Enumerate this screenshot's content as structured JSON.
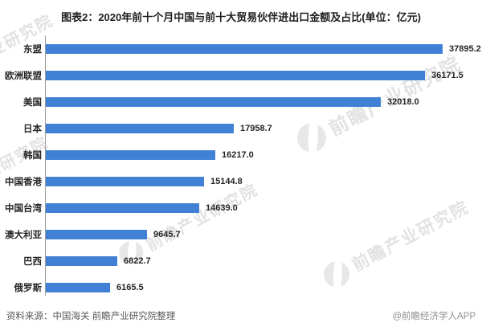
{
  "title": "图表2：2020年前十个月中国与前十大贸易伙伴进出口金额及占比(单位：亿元)",
  "chart_data": {
    "type": "bar",
    "orientation": "horizontal",
    "title": "图表2：2020年前十个月中国与前十大贸易伙伴进出口金额及占比",
    "unit": "亿元",
    "categories": [
      "东盟",
      "欧洲联盟",
      "美国",
      "日本",
      "韩国",
      "中国香港",
      "中国台湾",
      "澳大利亚",
      "巴西",
      "俄罗斯"
    ],
    "values": [
      37895.2,
      36171.5,
      32018.0,
      17958.7,
      16217.0,
      15144.8,
      14639.0,
      9645.7,
      6822.7,
      6165.5
    ],
    "value_labels": [
      "37895.2",
      "36171.5",
      "32018.0",
      "17958.7",
      "16217.0",
      "15144.8",
      "14639.0",
      "9645.7",
      "6822.7",
      "6165.5"
    ],
    "xlim": [
      0,
      40000
    ],
    "grid": false,
    "legend_position": "none",
    "bar_color": "#4081D6"
  },
  "footer": {
    "source": "资料来源：中国海关 前瞻产业研究院整理",
    "credit": "@前瞻经济学人APP"
  },
  "watermark": {
    "text": "前瞻产业研究院",
    "logo": "qianzhan-logo"
  }
}
